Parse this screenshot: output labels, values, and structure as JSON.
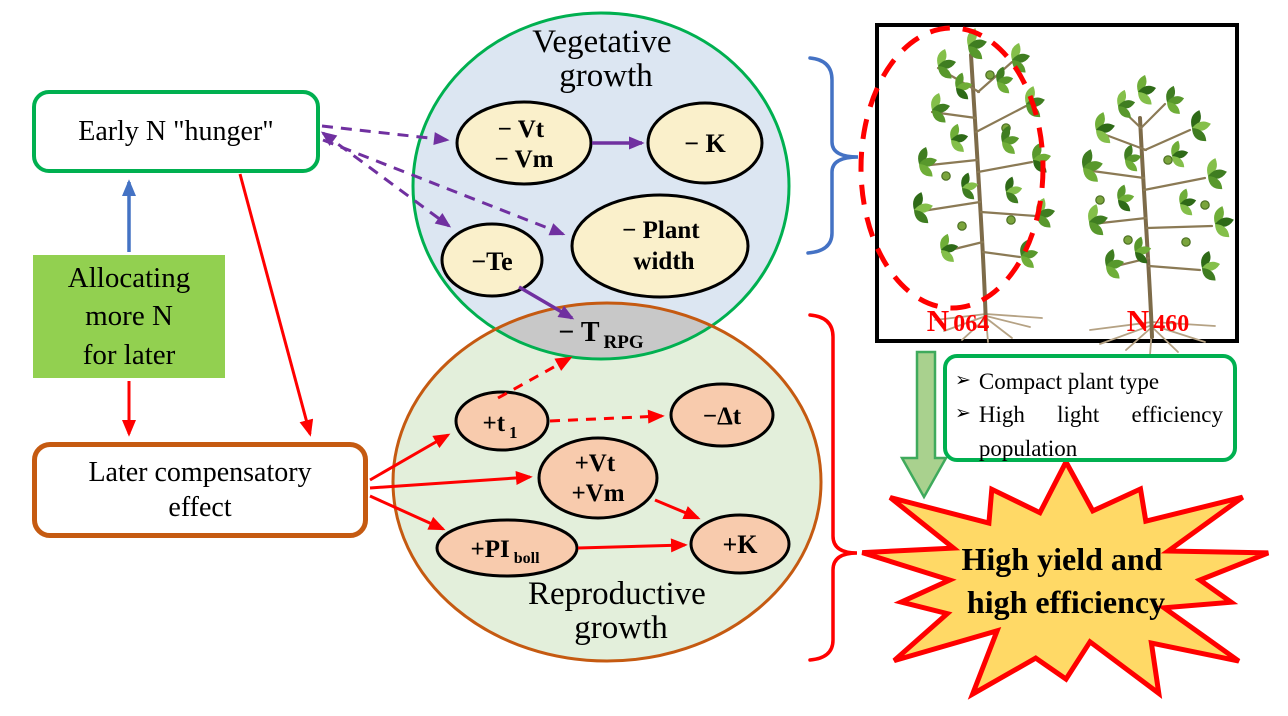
{
  "left": {
    "early_box": "Early N \"hunger\"",
    "allocating_box": [
      "Allocating",
      "more N",
      "for later"
    ],
    "later_box": [
      "Later compensatory",
      "effect"
    ]
  },
  "vegetative": {
    "title": [
      "Vegetative",
      "growth"
    ],
    "node_vtvm": [
      "− Vt",
      "− Vm"
    ],
    "node_k": "− K",
    "node_te": "−Te",
    "node_plant_width": [
      "− Plant",
      "width"
    ]
  },
  "overlap_node": {
    "main": "− T",
    "sub": "RPG"
  },
  "reproductive": {
    "title": [
      "Reproductive",
      "growth"
    ],
    "node_t1": {
      "main": "+t",
      "sub": "1"
    },
    "node_dt": "−Δt",
    "node_vtvm": [
      "+Vt",
      "+Vm"
    ],
    "node_piboll": {
      "main": "+PI",
      "sub": "boll"
    },
    "node_k": "+K"
  },
  "photo_panel": {
    "label_n064": {
      "main": "N",
      "sub": "064"
    },
    "label_n460": {
      "main": "N",
      "sub": "460"
    }
  },
  "outcomes": {
    "bullet_glyph": "➢",
    "items": [
      "Compact plant type",
      "High light efficiency population"
    ],
    "starburst": [
      "High yield and",
      "high efficiency"
    ]
  },
  "colors": {
    "green_border": "#00b050",
    "green_fill_box": "#92d050",
    "blue": "#4472c4",
    "red": "#ff0000",
    "purple": "#7030a0",
    "orange_brown": "#c55a11",
    "vegetative_fill": "#dce6f2",
    "reproductive_fill": "#e3efdb",
    "overlap_gray": "#c8c8c8",
    "node_cream": "#faf0cb",
    "node_salmon": "#f8cbad",
    "starburst_yellow": "#ffd966",
    "green_arrow_fill": "#a9d18e"
  }
}
